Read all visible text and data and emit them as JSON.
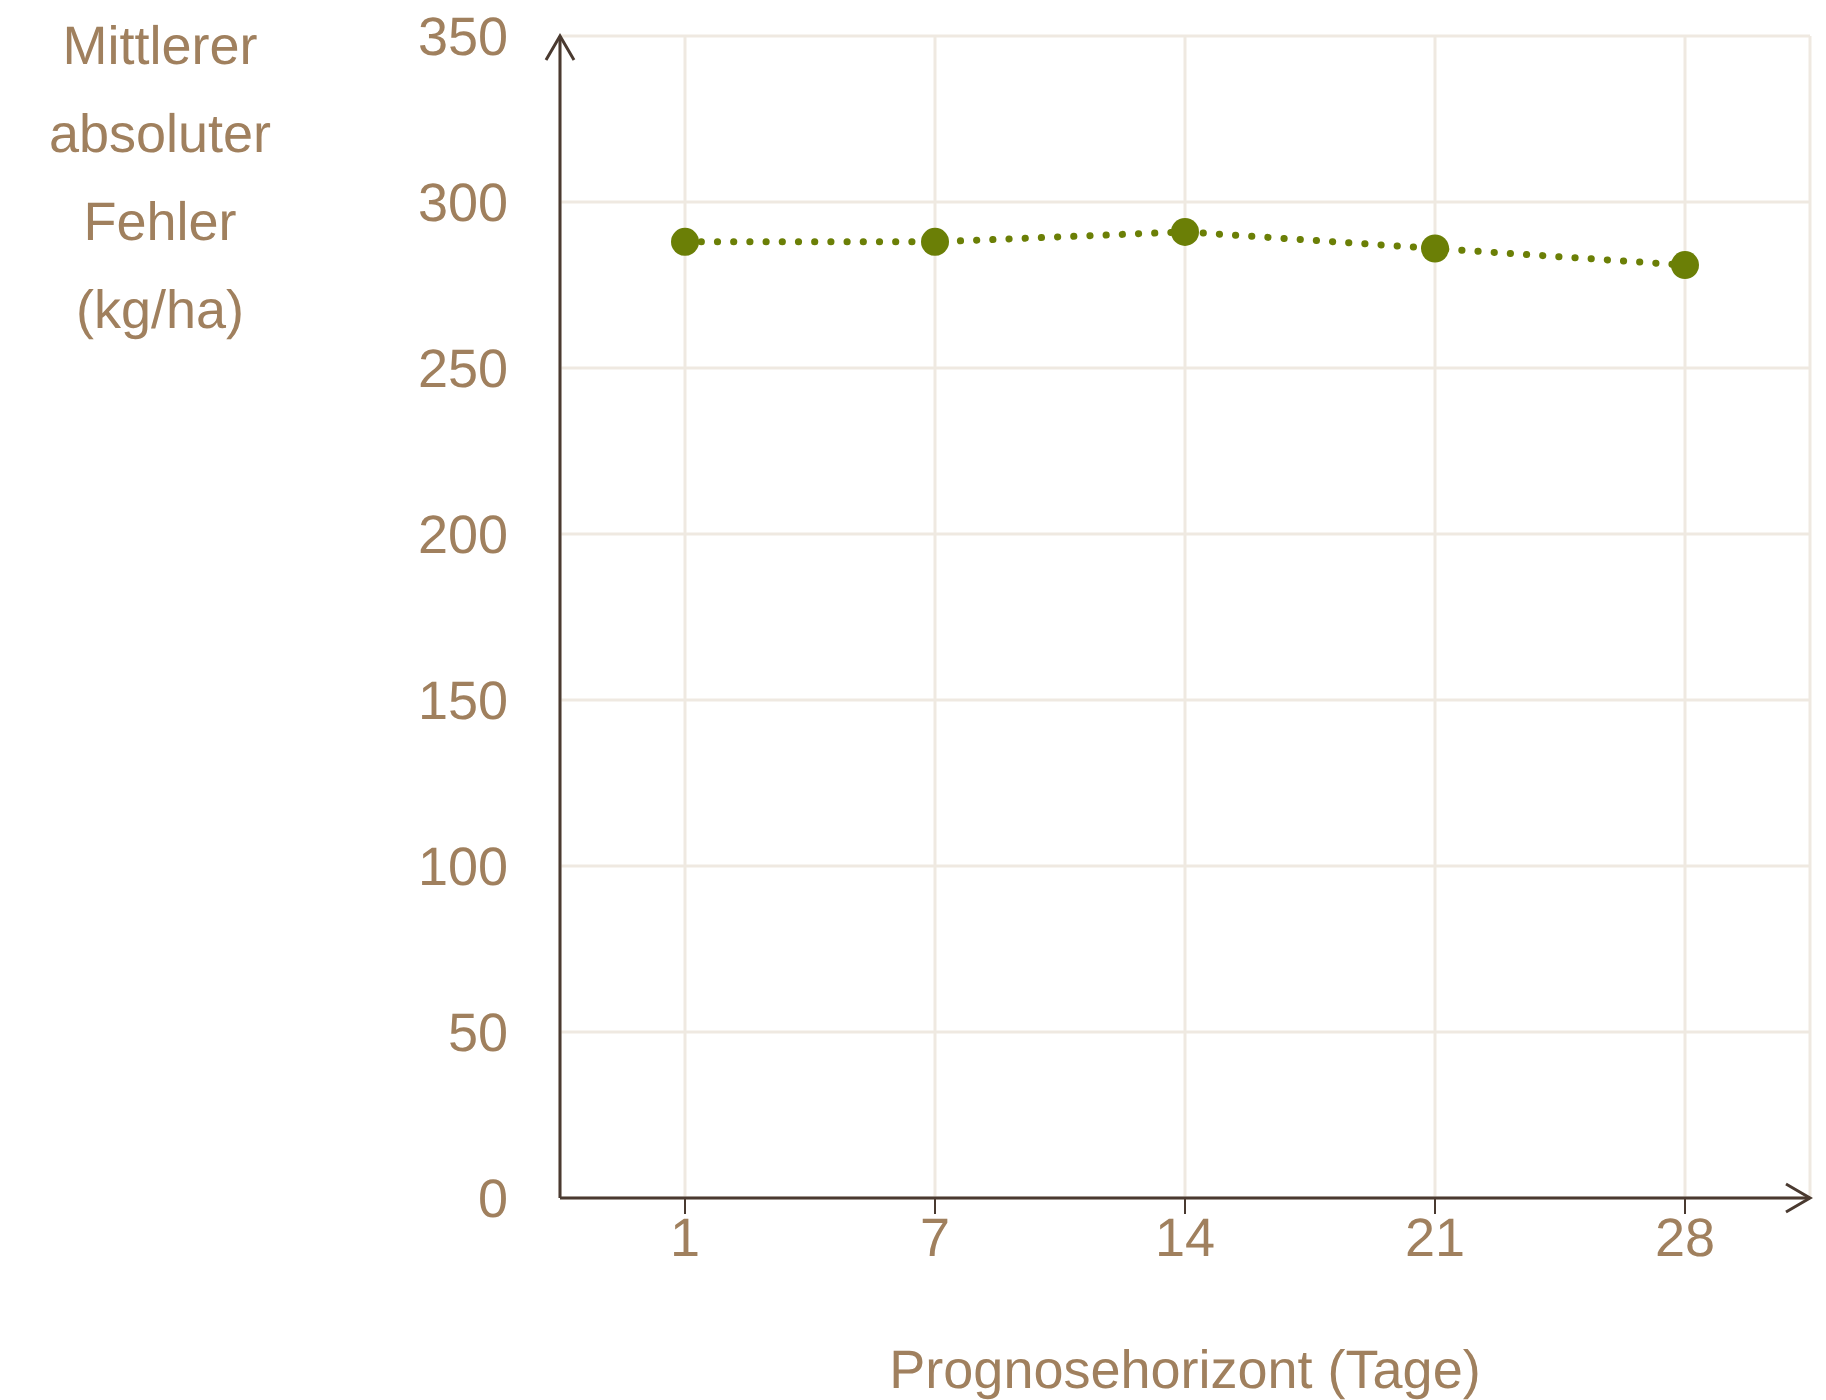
{
  "chart_data": {
    "type": "line",
    "xlabel": "Prognosehorizont (Tage)",
    "ylabel": "Mittlerer absoluter Fehler (kg/ha)",
    "categories": [
      "1",
      "7",
      "14",
      "21",
      "28"
    ],
    "series": [
      {
        "color": "#6b7f06",
        "values": [
          288,
          288,
          291,
          286,
          281
        ]
      }
    ],
    "ylim": [
      0,
      350
    ],
    "yticks": [
      0,
      50,
      100,
      150,
      200,
      250,
      300,
      350
    ],
    "grid": true,
    "marker": "circle",
    "line_style": "dotted"
  }
}
